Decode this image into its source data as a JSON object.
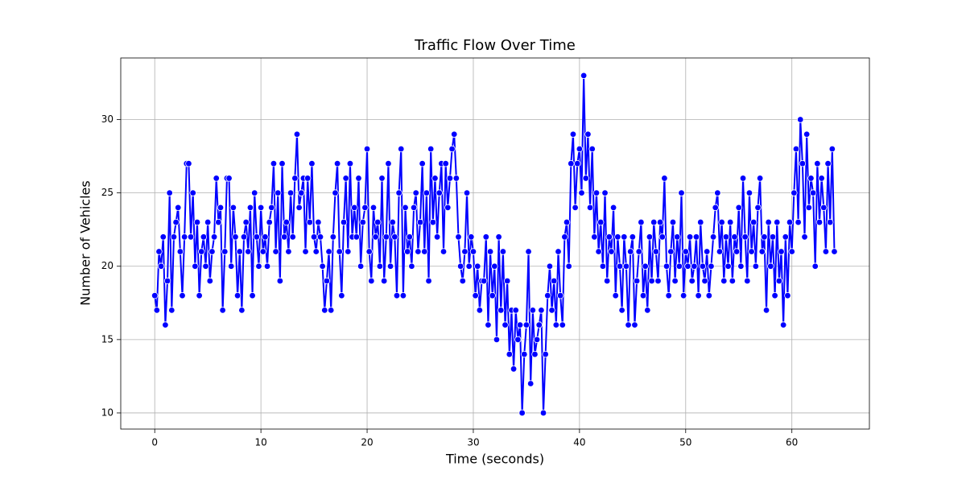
{
  "chart_data": {
    "type": "line",
    "title": "Traffic Flow Over Time",
    "xlabel": "Time (seconds)",
    "ylabel": "Number of Vehicles",
    "color": "#0000ff",
    "grid": true,
    "xlim": [
      -3.2,
      67.3
    ],
    "ylim": [
      8.9,
      34.2
    ],
    "xticks": [
      0,
      10,
      20,
      30,
      40,
      50,
      60
    ],
    "yticks": [
      10,
      15,
      20,
      25,
      30
    ],
    "x": [
      0,
      0.2,
      0.4,
      0.6,
      0.8,
      1,
      1.2,
      1.4,
      1.6,
      1.8,
      2,
      2.2,
      2.4,
      2.6,
      2.8,
      3,
      3.2,
      3.4,
      3.6,
      3.8,
      4,
      4.2,
      4.4,
      4.6,
      4.8,
      5,
      5.2,
      5.4,
      5.6,
      5.8,
      6,
      6.2,
      6.4,
      6.6,
      6.8,
      7,
      7.2,
      7.4,
      7.6,
      7.8,
      8,
      8.2,
      8.4,
      8.6,
      8.8,
      9,
      9.2,
      9.4,
      9.6,
      9.8,
      10,
      10.2,
      10.4,
      10.6,
      10.8,
      11,
      11.2,
      11.4,
      11.6,
      11.8,
      12,
      12.2,
      12.4,
      12.6,
      12.8,
      13,
      13.2,
      13.4,
      13.6,
      13.8,
      14,
      14.2,
      14.4,
      14.6,
      14.8,
      15,
      15.2,
      15.4,
      15.6,
      15.8,
      16,
      16.2,
      16.4,
      16.6,
      16.8,
      17,
      17.2,
      17.4,
      17.6,
      17.8,
      18,
      18.2,
      18.4,
      18.6,
      18.8,
      19,
      19.2,
      19.4,
      19.6,
      19.8,
      20,
      20.2,
      20.4,
      20.6,
      20.8,
      21,
      21.2,
      21.4,
      21.6,
      21.8,
      22,
      22.2,
      22.4,
      22.6,
      22.8,
      23,
      23.2,
      23.4,
      23.6,
      23.8,
      24,
      24.2,
      24.4,
      24.6,
      24.8,
      25,
      25.2,
      25.4,
      25.6,
      25.8,
      26,
      26.2,
      26.4,
      26.6,
      26.8,
      27,
      27.2,
      27.4,
      27.6,
      27.8,
      28,
      28.2,
      28.4,
      28.6,
      28.8,
      29,
      29.2,
      29.4,
      29.6,
      29.8,
      30,
      30.2,
      30.4,
      30.6,
      30.8,
      31,
      31.2,
      31.4,
      31.6,
      31.8,
      32,
      32.2,
      32.4,
      32.6,
      32.8,
      33,
      33.2,
      33.4,
      33.6,
      33.8,
      34,
      34.2,
      34.4,
      34.6,
      34.8,
      35,
      35.2,
      35.4,
      35.6,
      35.8,
      36,
      36.2,
      36.4,
      36.6,
      36.8,
      37,
      37.2,
      37.4,
      37.6,
      37.8,
      38,
      38.2,
      38.4,
      38.6,
      38.8,
      39,
      39.2,
      39.4,
      39.6,
      39.8,
      40,
      40.2,
      40.4,
      40.6,
      40.8,
      41,
      41.2,
      41.4,
      41.6,
      41.8,
      42,
      42.2,
      42.4,
      42.6,
      42.8,
      43,
      43.2,
      43.4,
      43.6,
      43.8,
      44,
      44.2,
      44.4,
      44.6,
      44.8,
      45,
      45.2,
      45.4,
      45.6,
      45.8,
      46,
      46.2,
      46.4,
      46.6,
      46.8,
      47,
      47.2,
      47.4,
      47.6,
      47.8,
      48,
      48.2,
      48.4,
      48.6,
      48.8,
      49,
      49.2,
      49.4,
      49.6,
      49.8,
      50,
      50.2,
      50.4,
      50.6,
      50.8,
      51,
      51.2,
      51.4,
      51.6,
      51.8,
      52,
      52.2,
      52.4,
      52.6,
      52.8,
      53,
      53.2,
      53.4,
      53.6,
      53.8,
      54,
      54.2,
      54.4,
      54.6,
      54.8,
      55,
      55.2,
      55.4,
      55.6,
      55.8,
      56,
      56.2,
      56.4,
      56.6,
      56.8,
      57,
      57.2,
      57.4,
      57.6,
      57.8,
      58,
      58.2,
      58.4,
      58.6,
      58.8,
      59,
      59.2,
      59.4,
      59.6,
      59.8,
      60,
      60.2,
      60.4,
      60.6,
      60.8,
      61,
      61.2,
      61.4,
      61.6,
      61.8,
      62,
      62.2,
      62.4,
      62.6,
      62.8,
      63,
      63.2,
      63.4,
      63.6,
      63.8,
      64
    ],
    "values": [
      18,
      17,
      21,
      20,
      22,
      16,
      19,
      25,
      17,
      22,
      23,
      24,
      21,
      18,
      22,
      27,
      27,
      22,
      25,
      20,
      23,
      18,
      21,
      22,
      20,
      23,
      19,
      21,
      22,
      26,
      23,
      24,
      17,
      21,
      26,
      26,
      20,
      24,
      22,
      18,
      21,
      17,
      22,
      23,
      21,
      24,
      18,
      25,
      22,
      20,
      24,
      21,
      22,
      20,
      23,
      24,
      27,
      21,
      25,
      19,
      27,
      22,
      23,
      21,
      25,
      22,
      26,
      29,
      24,
      25,
      26,
      21,
      26,
      23,
      27,
      22,
      21,
      23,
      22,
      20,
      17,
      19,
      21,
      17,
      22,
      25,
      27,
      21,
      18,
      23,
      26,
      21,
      27,
      22,
      24,
      22,
      26,
      20,
      23,
      24,
      28,
      21,
      19,
      24,
      22,
      23,
      20,
      26,
      19,
      22,
      27,
      20,
      23,
      22,
      18,
      25,
      28,
      18,
      24,
      21,
      22,
      20,
      24,
      25,
      21,
      23,
      27,
      21,
      25,
      19,
      28,
      23,
      26,
      22,
      25,
      27,
      21,
      27,
      24,
      26,
      28,
      29,
      26,
      22,
      20,
      19,
      21,
      25,
      20,
      22,
      21,
      18,
      20,
      17,
      19,
      19,
      22,
      16,
      21,
      18,
      20,
      15,
      22,
      17,
      21,
      16,
      19,
      14,
      17,
      13,
      17,
      15,
      16,
      10,
      14,
      16,
      21,
      12,
      17,
      14,
      15,
      16,
      17,
      10,
      14,
      18,
      20,
      17,
      19,
      16,
      21,
      18,
      16,
      22,
      23,
      20,
      27,
      29,
      24,
      27,
      28,
      25,
      33,
      26,
      29,
      24,
      28,
      22,
      25,
      21,
      23,
      20,
      25,
      19,
      22,
      21,
      24,
      18,
      22,
      20,
      17,
      22,
      20,
      16,
      21,
      22,
      16,
      19,
      21,
      23,
      18,
      20,
      17,
      22,
      19,
      23,
      21,
      19,
      23,
      22,
      26,
      20,
      18,
      21,
      23,
      19,
      22,
      20,
      25,
      18,
      21,
      20,
      22,
      19,
      20,
      22,
      18,
      23,
      20,
      19,
      21,
      18,
      20,
      22,
      24,
      25,
      21,
      23,
      19,
      22,
      20,
      23,
      19,
      22,
      21,
      24,
      20,
      26,
      22,
      19,
      25,
      21,
      23,
      20,
      24,
      26,
      21,
      22,
      17,
      23,
      20,
      22,
      18,
      23,
      19,
      21,
      16,
      22,
      18,
      23,
      21,
      25,
      28,
      23,
      30,
      27,
      22,
      29,
      24,
      26,
      25,
      20,
      27,
      23,
      26,
      24,
      21,
      27,
      23,
      28,
      21
    ]
  }
}
